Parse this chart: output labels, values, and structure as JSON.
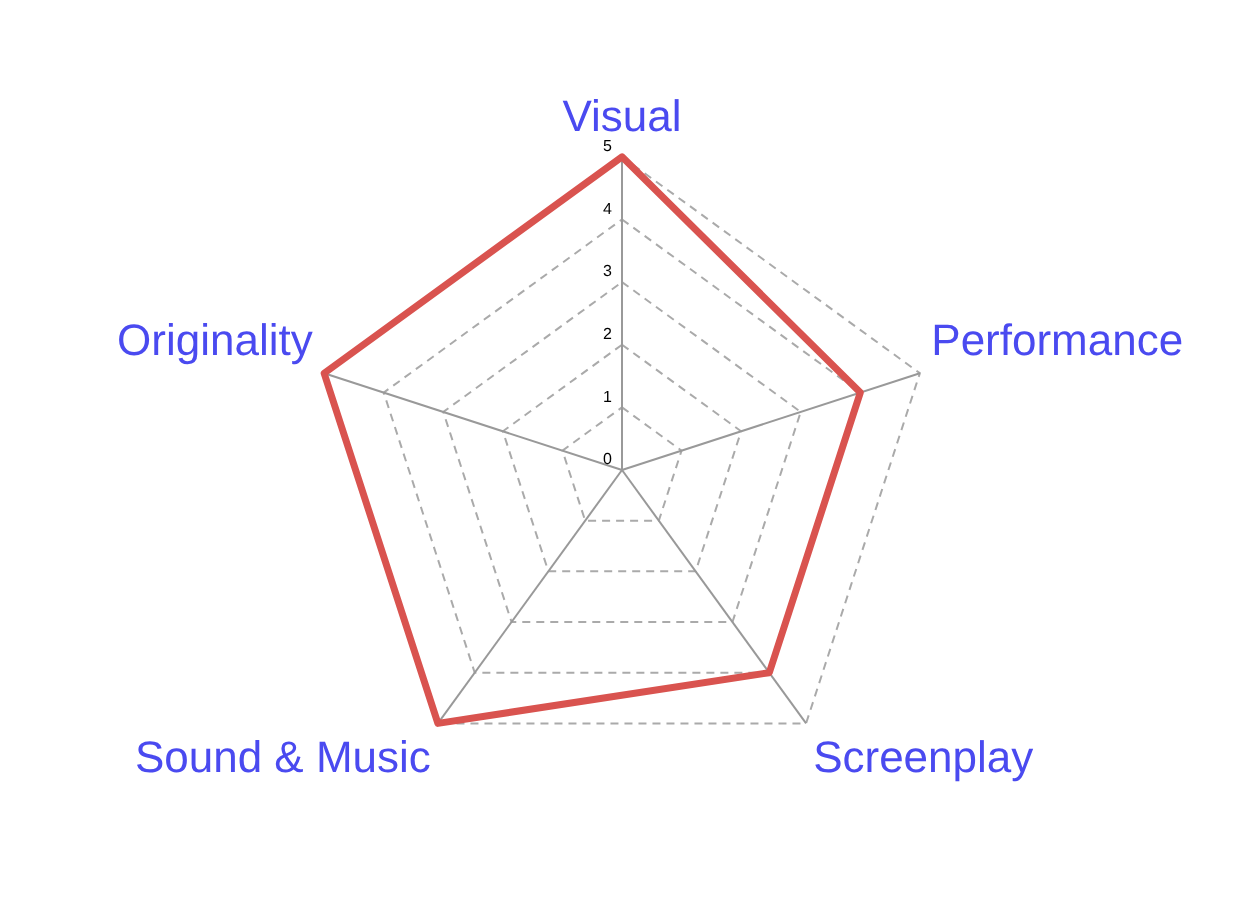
{
  "chart_data": {
    "type": "radar",
    "categories": [
      "Visual",
      "Performance",
      "Screenplay",
      "Sound & Music",
      "Originality"
    ],
    "series": [
      {
        "color": "#d9534f",
        "values": [
          5,
          4,
          4,
          5,
          5
        ]
      }
    ],
    "ylim": [
      0,
      5
    ],
    "yticks": [
      0,
      1,
      2,
      3,
      4,
      5
    ],
    "grid": true,
    "legend": false,
    "marker": "none"
  }
}
